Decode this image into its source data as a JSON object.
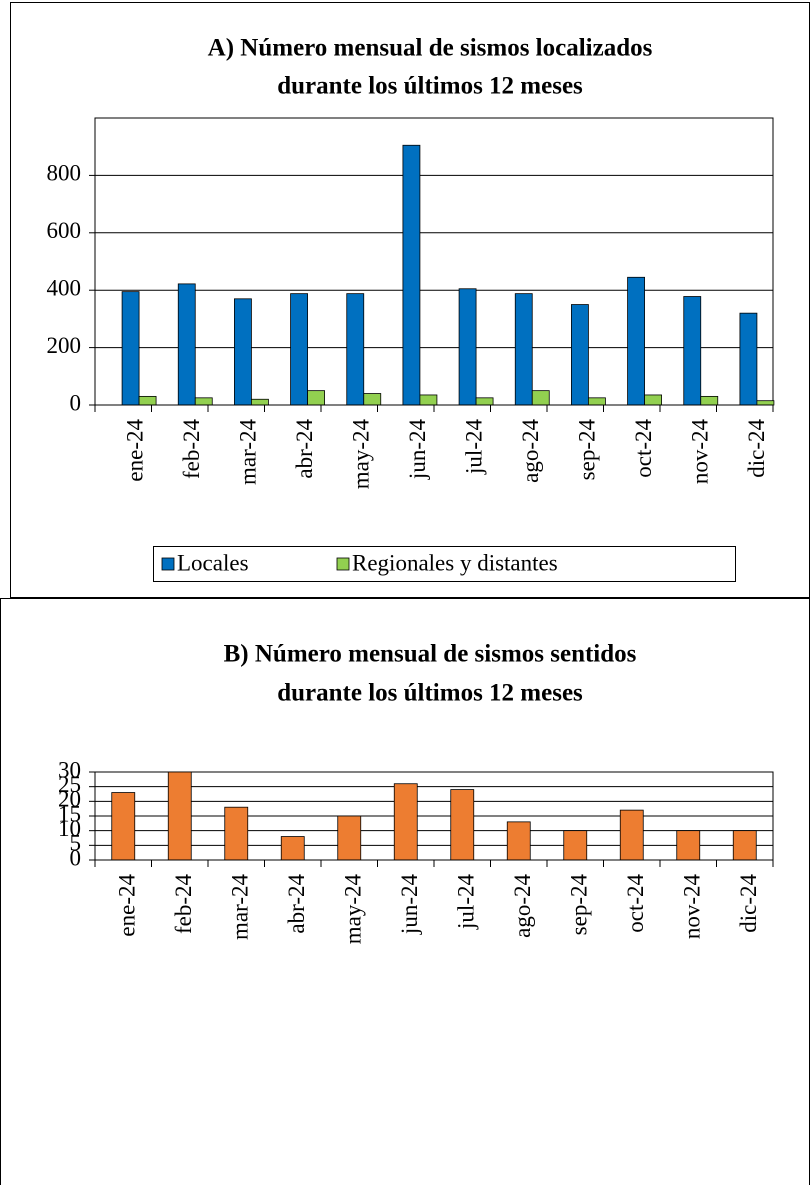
{
  "chart_data": [
    {
      "type": "grouped-bar",
      "title": [
        "A) Número mensual de sismos localizados",
        "durante los últimos 12 meses"
      ],
      "categories": [
        "ene-24",
        "feb-24",
        "mar-24",
        "abr-24",
        "may-24",
        "jun-24",
        "jul-24",
        "ago-24",
        "sep-24",
        "oct-24",
        "nov-24",
        "dic-24"
      ],
      "series": [
        {
          "name": "Locales",
          "color": "#0070c0",
          "values": [
            395,
            422,
            370,
            388,
            388,
            905,
            405,
            388,
            350,
            445,
            378,
            320
          ]
        },
        {
          "name": "Regionales y distantes",
          "color": "#92d050",
          "values": [
            30,
            25,
            20,
            50,
            40,
            35,
            25,
            50,
            25,
            35,
            30,
            15
          ]
        }
      ],
      "ylim": [
        0,
        1000
      ],
      "yticks": [
        0,
        200,
        400,
        600,
        800
      ],
      "grid": true,
      "legend": "bottom"
    },
    {
      "type": "bar",
      "title": [
        "B) Número mensual de sismos sentidos",
        "durante los últimos 12 meses"
      ],
      "categories": [
        "ene-24",
        "feb-24",
        "mar-24",
        "abr-24",
        "may-24",
        "jun-24",
        "jul-24",
        "ago-24",
        "sep-24",
        "oct-24",
        "nov-24",
        "dic-24"
      ],
      "values": [
        23,
        30,
        18,
        8,
        15,
        26,
        24,
        13,
        10,
        17,
        10,
        10
      ],
      "color": "#ed7d31",
      "ylim": [
        0,
        30
      ],
      "yticks": [
        0,
        5,
        10,
        15,
        20,
        25,
        30
      ],
      "grid": true
    }
  ]
}
